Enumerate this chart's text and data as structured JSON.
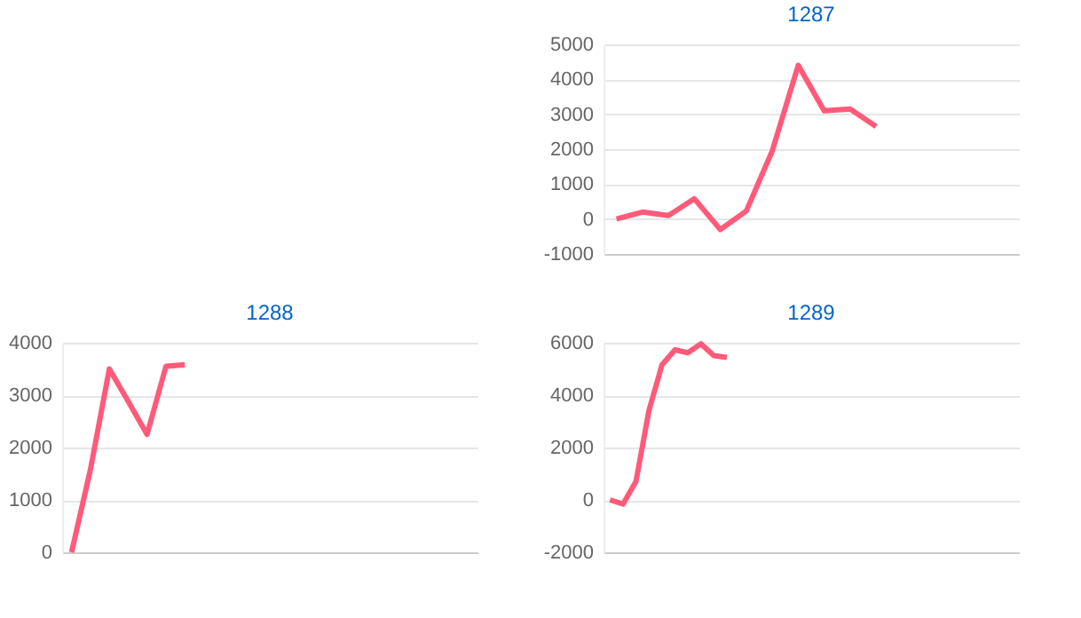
{
  "chart_data": [
    {
      "type": "line",
      "title": "1287",
      "categories": [
        null,
        null,
        null,
        null,
        null,
        null,
        null,
        null,
        null,
        null,
        null,
        null,
        null,
        null,
        null,
        null
      ],
      "series": [
        {
          "color": "#ff5a7a",
          "values": [
            0,
            200,
            100,
            580,
            -300,
            230,
            1950,
            4400,
            3100,
            3150,
            2650,
            null,
            null,
            null,
            null,
            null
          ]
        }
      ],
      "ylim": [
        -1000,
        5000
      ],
      "yticks": [
        -1000,
        0,
        1000,
        2000,
        3000,
        4000,
        5000
      ],
      "grid": "y",
      "tick_labels": "y",
      "legend": false,
      "marker": "none",
      "line_style": "solid"
    },
    {
      "type": "line",
      "title": "1288",
      "categories": [
        null,
        null,
        null,
        null,
        null,
        null,
        null,
        null,
        null,
        null,
        null,
        null,
        null,
        null,
        null,
        null,
        null,
        null,
        null,
        null,
        null,
        null
      ],
      "series": [
        {
          "color": "#ff5a7a",
          "values": [
            0,
            1580,
            3500,
            2880,
            2250,
            3550,
            3580,
            null,
            null,
            null,
            null,
            null,
            null,
            null,
            null,
            null,
            null,
            null,
            null,
            null,
            null,
            null
          ]
        }
      ],
      "ylim": [
        0,
        4000
      ],
      "yticks": [
        0,
        1000,
        2000,
        3000,
        4000
      ],
      "grid": "y",
      "tick_labels": "y",
      "legend": false,
      "marker": "none",
      "line_style": "solid"
    },
    {
      "type": "line",
      "title": "1289",
      "categories": [
        null,
        null,
        null,
        null,
        null,
        null,
        null,
        null,
        null,
        null,
        null,
        null,
        null,
        null,
        null,
        null,
        null,
        null,
        null,
        null,
        null,
        null,
        null,
        null,
        null,
        null,
        null,
        null,
        null,
        null,
        null,
        null
      ],
      "series": [
        {
          "color": "#ff5a7a",
          "values": [
            0,
            -160,
            700,
            3410,
            5150,
            5730,
            5620,
            5960,
            5510,
            5440,
            null,
            null,
            null,
            null,
            null,
            null,
            null,
            null,
            null,
            null,
            null,
            null,
            null,
            null,
            null,
            null,
            null,
            null,
            null,
            null,
            null,
            null
          ]
        }
      ],
      "ylim": [
        -2000,
        6000
      ],
      "yticks": [
        -2000,
        0,
        2000,
        4000,
        6000
      ],
      "grid": "y",
      "tick_labels": "y",
      "legend": false,
      "marker": "none",
      "line_style": "solid"
    }
  ]
}
